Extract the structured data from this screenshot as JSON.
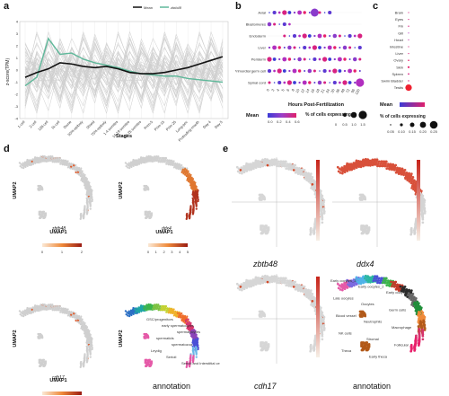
{
  "panel_labels": {
    "a": "a",
    "b": "b",
    "c": "c",
    "d": "d",
    "e": "e"
  },
  "panel_a": {
    "legend": {
      "mean": "Mean",
      "gene": "zbtb48"
    },
    "ylabel": "z-score(TPM)",
    "xlabel": "Stages",
    "yticks": [
      "4",
      "3",
      "2",
      "1",
      "0",
      "-1",
      "-2",
      "-3",
      "-4"
    ],
    "stages": [
      "1-cell",
      "2-cell",
      "128-cell",
      "1k-cell",
      "Dome",
      "50%-epiboly",
      "Shield",
      "75%-epiboly",
      "1-4 somites",
      "14-19 somites",
      "20-25 somites",
      "Prim-5",
      "Prim-15",
      "Prim-25",
      "Long-pec",
      "Protruding-mouth",
      "Day 4",
      "Day 5"
    ],
    "colors": {
      "mean": "#111111",
      "gene": "#5fb89a",
      "band": "#cfcfcf"
    }
  },
  "panel_b": {
    "tissues": [
      "Axial",
      "Blastomeres",
      "Endoderm",
      "Liver",
      "Periderm",
      "Primordial germ cell",
      "Spinal cord"
    ],
    "hours": [
      "0",
      "3",
      "4",
      "5",
      "6",
      "8",
      "10",
      "12",
      "14",
      "16",
      "18",
      "21",
      "24",
      "30",
      "36",
      "48",
      "72",
      "96",
      "120"
    ],
    "xlabel": "Hours Post-Fertilization",
    "legend_mean_title": "Mean",
    "legend_mean_ticks": [
      "0.0",
      "0.2",
      "0.4",
      "0.6"
    ],
    "legend_pct_title": "% of cells expressing",
    "legend_pct_ticks": [
      "0",
      "0.5",
      "1.0",
      "1.5"
    ]
  },
  "panel_c": {
    "tissues": [
      "Brain",
      "Eyes",
      "Fin",
      "Gill",
      "Heart",
      "Intestine",
      "Liver",
      "Ovary",
      "Skin",
      "Spleen",
      "Swim Bladder",
      "Testis"
    ],
    "legend_mean_title": "Mean",
    "legend_pct_title": "% of cells expressing",
    "legend_pct_ticks": [
      "0.05",
      "0.10",
      "0.15",
      "0.20",
      "0.25"
    ]
  },
  "panel_d": {
    "umap1": "UMAP1",
    "umap2": "UMAP2",
    "genes": [
      {
        "name": "zbtb48",
        "ticks": [
          "0",
          "1",
          "2"
        ]
      },
      {
        "name": "ddx4",
        "ticks": [
          "0",
          "1",
          "2",
          "3",
          "4",
          "5"
        ]
      },
      {
        "name": "cdh17",
        "ticks": [
          "0",
          "1",
          "2"
        ]
      }
    ],
    "annotation_label": "annotation",
    "clusters": [
      "GSC/progenitors",
      "early spermatocytes",
      "spermatocytes",
      "spermatids",
      "spermatozoa",
      "Leydig",
      "Sertoli",
      "Sertoli and Interstitial cells",
      "Myeloid",
      "Macrophage",
      "Endothelial",
      "T cell"
    ]
  },
  "panel_e": {
    "genes": [
      "zbtb48",
      "ddx4",
      "cdh17"
    ],
    "annotation_label": "annotation",
    "clusters": [
      "Early oocytes_3",
      "Early oocytes_2",
      "Early oocytes_1",
      "Late oocytes",
      "Oocytes",
      "Germ cells",
      "Blood vessel",
      "Neutrophils",
      "Macrophage",
      "NK cells",
      "Stromal",
      "Follicular",
      "Theca",
      "Early theca"
    ]
  }
}
